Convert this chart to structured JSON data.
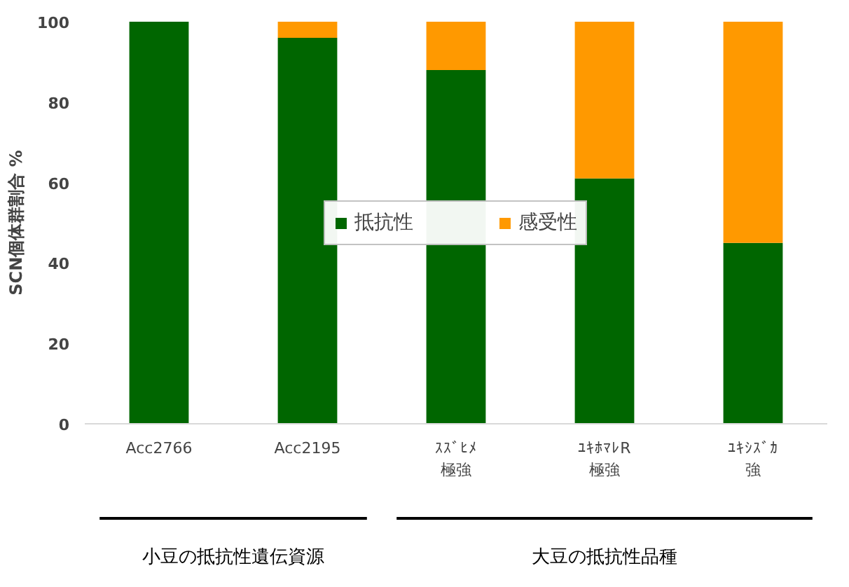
{
  "chart_data": {
    "type": "bar",
    "stacked": true,
    "ylabel": "SCN個体群割合 %",
    "categories": [
      "Acc2766",
      "Acc2195",
      "ｽｽﾞﾋﾒ極強",
      "ﾕｷﾎﾏﾚR極強",
      "ﾕｷｼｽﾞｶ強"
    ],
    "series": [
      {
        "name": "抵抗性",
        "color": "#006600",
        "values": [
          100,
          96,
          88,
          61,
          45
        ]
      },
      {
        "name": "感受性",
        "color": "#ff9900",
        "values": [
          0,
          4,
          12,
          39,
          55
        ]
      }
    ],
    "ylim": [
      0,
      100
    ],
    "yticks": [
      0,
      20,
      40,
      60,
      80,
      100
    ],
    "grid": false,
    "legend": "center",
    "annotations": [
      "小豆の抵抗性遺伝資源",
      "大豆の抵抗性品種"
    ]
  }
}
